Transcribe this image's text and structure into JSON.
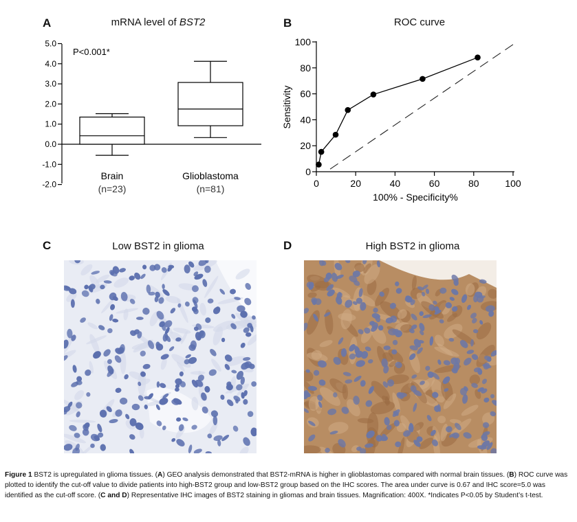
{
  "panels": {
    "A": {
      "letter": "A",
      "title_prefix": "mRNA level of ",
      "title_gene": "BST2",
      "annotation": "P<0.001*"
    },
    "B": {
      "letter": "B",
      "title": "ROC curve"
    },
    "C": {
      "letter": "C",
      "title": "Low BST2 in glioma"
    },
    "D": {
      "letter": "D",
      "title": "High BST2 in glioma"
    }
  },
  "chart_data": [
    {
      "type": "box",
      "title": "mRNA level of BST2",
      "xlabel": "",
      "ylabel": "",
      "ylim": [
        -2.0,
        5.0
      ],
      "yticks": [
        "5.0",
        "4.0",
        "3.0",
        "2.0",
        "1.0",
        "0.0",
        "-1.0",
        "-2.0"
      ],
      "categories": [
        "Brain",
        "Glioblastoma"
      ],
      "category_counts": [
        "(n=23)",
        "(n=81)"
      ],
      "boxes": [
        {
          "min": -0.55,
          "q1": 0.0,
          "median": 0.42,
          "q3": 1.35,
          "max": 1.52
        },
        {
          "min": 0.33,
          "q1": 0.92,
          "median": 1.75,
          "q3": 3.07,
          "max": 4.12
        }
      ]
    },
    {
      "type": "line",
      "title": "ROC curve",
      "xlabel": "100% - Specificity%",
      "ylabel": "Sensitivity",
      "xlim": [
        0,
        100
      ],
      "ylim": [
        0,
        100
      ],
      "xticks": [
        "0",
        "20",
        "40",
        "60",
        "80",
        "100"
      ],
      "yticks": [
        "0",
        "20",
        "40",
        "60",
        "80",
        "100"
      ],
      "series": [
        {
          "x": [
            1.2,
            2.5,
            9.8,
            16,
            29,
            54,
            82
          ],
          "y": [
            5.5,
            15.3,
            28.5,
            47.5,
            59.5,
            71.5,
            88
          ]
        }
      ],
      "reference_line": {
        "from": [
          7,
          2
        ],
        "to": [
          100,
          98
        ]
      }
    }
  ],
  "caption": {
    "fig_label": "Figure 1",
    "intro": " BST2 is upregulated in glioma tissues. (",
    "A": "A",
    "a_text": ") GEO analysis demonstrated that BST2-mRNA is higher in glioblastomas compared with normal brain tissues. (",
    "B": "B",
    "b_text": ") ROC curve was plotted to identify the cut-off value to divide patients into high-BST2 group and low-BST2 group based on the IHC scores. The area under curve is 0.67 and IHC score=5.0 was identified as the cut-off score. (",
    "CD": "C and D",
    "cd_text": ") Representative IHC images of BST2 staining in gliomas and brain tissues. Magnification: 400X. *Indicates P<0.05 by Student’s t-test."
  },
  "colors": {
    "low_bg": "#e9ecf4",
    "low_cell": "#5b6fae",
    "high_bg": "#b88d63",
    "high_cell": "#6c77a6"
  }
}
